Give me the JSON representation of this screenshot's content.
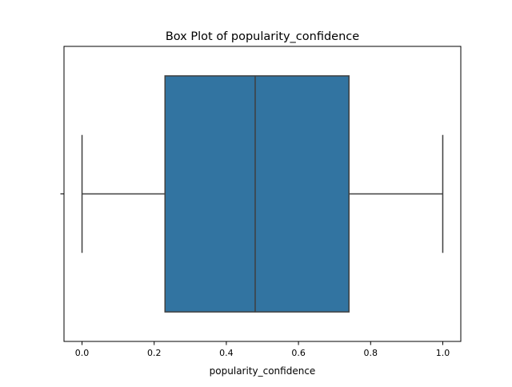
{
  "chart_data": {
    "type": "box",
    "title": "Box Plot of popularity_confidence",
    "xlabel": "popularity_confidence",
    "ylabel": "",
    "orientation": "horizontal",
    "xlim": [
      -0.05,
      1.05
    ],
    "x_ticks": [
      0.0,
      0.2,
      0.4,
      0.6,
      0.8,
      1.0
    ],
    "x_tick_labels": [
      "0.0",
      "0.2",
      "0.4",
      "0.6",
      "0.8",
      "1.0"
    ],
    "grid": false,
    "series": [
      {
        "min": 0.0,
        "q1": 0.23,
        "median": 0.48,
        "q3": 0.74,
        "max": 1.0
      }
    ],
    "colors": {
      "box_fill": "#3274a1",
      "box_edge": "#3f3f3f",
      "axes_edge": "#000000"
    }
  }
}
